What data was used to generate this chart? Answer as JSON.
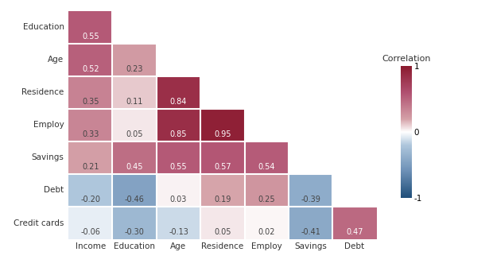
{
  "row_labels": [
    "Education",
    "Age",
    "Residence",
    "Employ",
    "Savings",
    "Debt",
    "Credit cards"
  ],
  "col_labels": [
    "Income",
    "Education",
    "Age",
    "Residence",
    "Employ",
    "Savings",
    "Debt"
  ],
  "values": [
    [
      0.55,
      null,
      null,
      null,
      null,
      null,
      null
    ],
    [
      0.52,
      0.23,
      null,
      null,
      null,
      null,
      null
    ],
    [
      0.35,
      0.11,
      0.84,
      null,
      null,
      null,
      null
    ],
    [
      0.33,
      0.05,
      0.85,
      0.95,
      null,
      null,
      null
    ],
    [
      0.21,
      0.45,
      0.55,
      0.57,
      0.54,
      null,
      null
    ],
    [
      -0.2,
      -0.46,
      0.03,
      0.19,
      0.25,
      -0.39,
      null
    ],
    [
      -0.06,
      -0.3,
      -0.13,
      0.05,
      0.02,
      -0.41,
      0.47
    ]
  ],
  "vmin": -1,
  "vmax": 1,
  "background_color": "#ffffff",
  "colorbar_title": "Correlation",
  "colorbar_ticks": [
    1,
    0,
    -1
  ],
  "font_size_values": 7,
  "font_size_labels": 7.5,
  "font_size_colorbar": 7.5,
  "font_size_cbar_title": 8
}
